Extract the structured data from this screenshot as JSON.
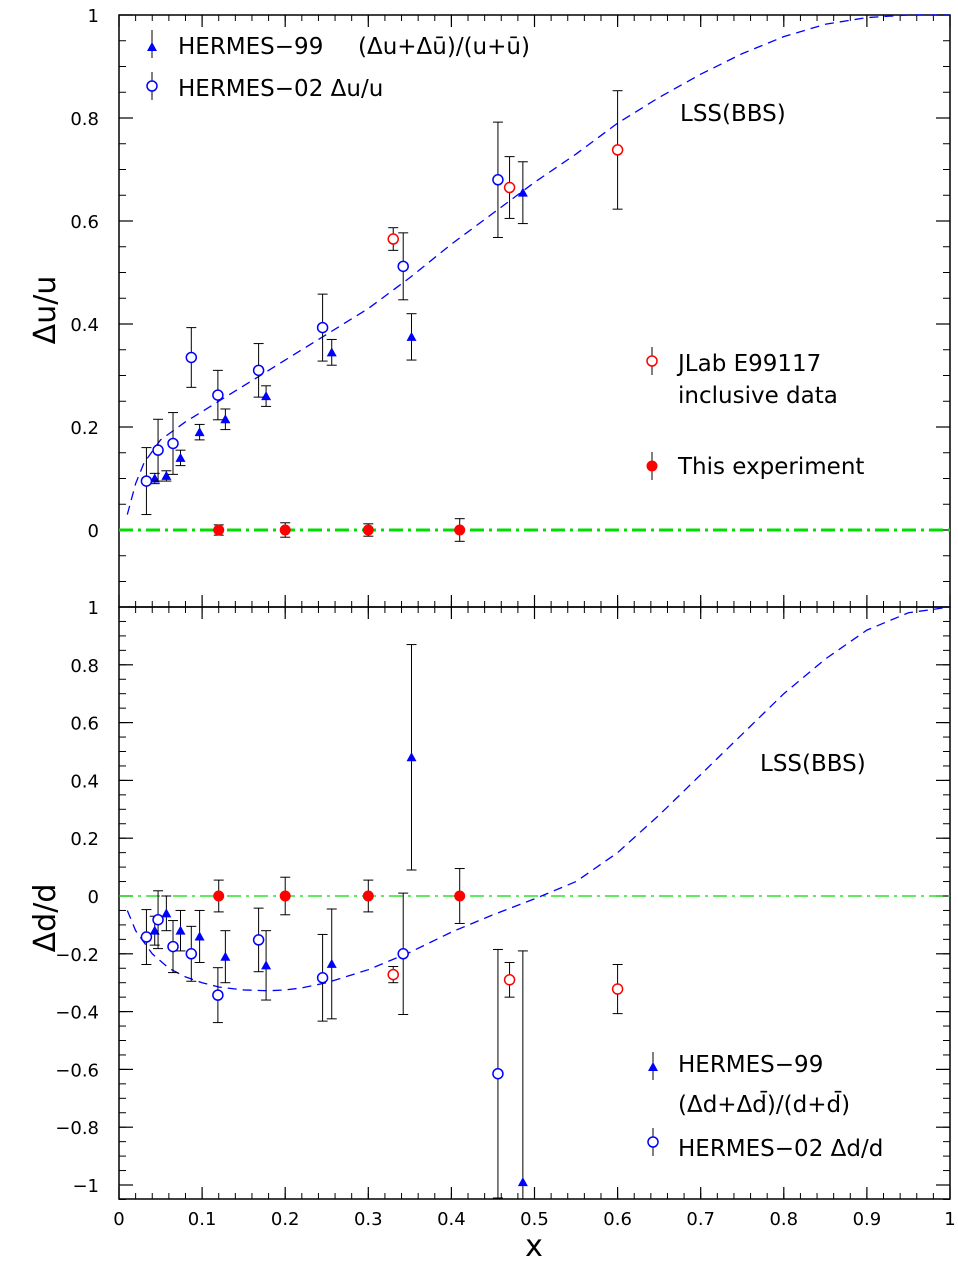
{
  "chart_data": [
    {
      "type": "scatter",
      "panel": "top",
      "title": "",
      "xlabel": "x",
      "ylabel": "Δu/u",
      "xlim": [
        0,
        1
      ],
      "ylim": [
        -0.15,
        1.0
      ],
      "xticks": [
        0,
        0.1,
        0.2,
        0.3,
        0.4,
        0.5,
        0.6,
        0.7,
        0.8,
        0.9,
        1
      ],
      "xtick_labels": [
        "0",
        "0.1",
        "0.2",
        "0.3",
        "0.4",
        "0.5",
        "0.6",
        "0.7",
        "0.8",
        "0.9",
        "1"
      ],
      "yticks": [
        0,
        0.2,
        0.4,
        0.6,
        0.8,
        1
      ],
      "ytick_labels": [
        "0",
        "0.2",
        "0.4",
        "0.6",
        "0.8",
        "1"
      ],
      "grid": false,
      "curve_label": "LSS(BBS)",
      "curve": {
        "x": [
          0.01,
          0.02,
          0.03,
          0.05,
          0.08,
          0.1,
          0.15,
          0.2,
          0.25,
          0.3,
          0.35,
          0.4,
          0.45,
          0.5,
          0.55,
          0.6,
          0.65,
          0.7,
          0.75,
          0.8,
          0.85,
          0.9,
          0.95,
          1.0
        ],
        "y": [
          0.03,
          0.09,
          0.13,
          0.175,
          0.21,
          0.23,
          0.28,
          0.33,
          0.38,
          0.43,
          0.49,
          0.555,
          0.615,
          0.675,
          0.73,
          0.79,
          0.84,
          0.885,
          0.925,
          0.958,
          0.982,
          0.995,
          1.0,
          1.0
        ]
      },
      "zero_line": 0,
      "series": [
        {
          "name": "HERMES-99",
          "marker": "triangle",
          "color": "#0000ff",
          "x": [
            0.043,
            0.057,
            0.074,
            0.097,
            0.128,
            0.177,
            0.256,
            0.352,
            0.486
          ],
          "y": [
            0.1,
            0.105,
            0.14,
            0.19,
            0.215,
            0.26,
            0.345,
            0.375,
            0.655
          ],
          "err": [
            0.01,
            0.01,
            0.015,
            0.015,
            0.02,
            0.02,
            0.025,
            0.045,
            0.06
          ]
        },
        {
          "name": "HERMES-02",
          "marker": "open-circle",
          "color": "#0000ff",
          "x": [
            0.033,
            0.047,
            0.065,
            0.087,
            0.119,
            0.168,
            0.245,
            0.342,
            0.456
          ],
          "y": [
            0.095,
            0.155,
            0.168,
            0.335,
            0.262,
            0.31,
            0.393,
            0.512,
            0.68
          ],
          "err": [
            0.065,
            0.06,
            0.06,
            0.058,
            0.048,
            0.052,
            0.065,
            0.065,
            0.112
          ]
        },
        {
          "name": "JLab E99117",
          "marker": "open-circle",
          "color": "#ff0000",
          "x": [
            0.33,
            0.47,
            0.6
          ],
          "y": [
            0.565,
            0.665,
            0.738
          ],
          "err": [
            0.022,
            0.06,
            0.115
          ]
        },
        {
          "name": "This experiment",
          "marker": "filled-circle",
          "color": "#ff0000",
          "x": [
            0.12,
            0.2,
            0.3,
            0.41
          ],
          "y": [
            0.0,
            0.0,
            0.0,
            0.0
          ],
          "err": [
            0.01,
            0.014,
            0.012,
            0.022
          ]
        }
      ],
      "legend": {
        "hermes99_name": "HERMES−99",
        "hermes99_formula": "(Δu+Δū)/(u+ū)",
        "hermes02": "HERMES−02 Δu/u",
        "jlab_line1": "JLab E99117",
        "jlab_line2": "inclusive data",
        "this_experiment": "This experiment"
      }
    },
    {
      "type": "scatter",
      "panel": "bottom",
      "title": "",
      "xlabel": "x",
      "ylabel": "Δd/d",
      "xlim": [
        0,
        1
      ],
      "ylim": [
        -1.05,
        1.0
      ],
      "xticks": [
        0,
        0.1,
        0.2,
        0.3,
        0.4,
        0.5,
        0.6,
        0.7,
        0.8,
        0.9,
        1
      ],
      "xtick_labels": [
        "0",
        "0.1",
        "0.2",
        "0.3",
        "0.4",
        "0.5",
        "0.6",
        "0.7",
        "0.8",
        "0.9",
        "1"
      ],
      "yticks": [
        -1,
        -0.8,
        -0.6,
        -0.4,
        -0.2,
        0,
        0.2,
        0.4,
        0.6,
        0.8
      ],
      "ytick_labels": [
        "−1",
        "−0.8",
        "−0.6",
        "−0.4",
        "−0.2",
        "0",
        "0.2",
        "0.4",
        "0.6",
        "0.8"
      ],
      "grid": false,
      "curve_label": "LSS(BBS)",
      "curve": {
        "x": [
          0.01,
          0.02,
          0.04,
          0.06,
          0.08,
          0.1,
          0.12,
          0.15,
          0.18,
          0.2,
          0.22,
          0.25,
          0.3,
          0.35,
          0.4,
          0.45,
          0.5,
          0.55,
          0.6,
          0.65,
          0.7,
          0.75,
          0.8,
          0.85,
          0.9,
          0.95,
          1.0
        ],
        "y": [
          -0.05,
          -0.12,
          -0.2,
          -0.25,
          -0.28,
          -0.3,
          -0.315,
          -0.325,
          -0.328,
          -0.325,
          -0.318,
          -0.3,
          -0.255,
          -0.195,
          -0.125,
          -0.065,
          -0.01,
          0.05,
          0.15,
          0.28,
          0.42,
          0.56,
          0.7,
          0.82,
          0.92,
          0.98,
          1.0
        ]
      },
      "zero_line": 0,
      "series": [
        {
          "name": "HERMES-99",
          "marker": "triangle",
          "color": "#0000ff",
          "x": [
            0.043,
            0.057,
            0.074,
            0.097,
            0.128,
            0.177,
            0.256,
            0.352,
            0.486
          ],
          "y": [
            -0.12,
            -0.06,
            -0.12,
            -0.14,
            -0.21,
            -0.24,
            -0.235,
            0.48,
            -0.99
          ],
          "err": [
            0.05,
            0.06,
            0.07,
            0.09,
            0.09,
            0.12,
            0.19,
            0.39,
            0.8
          ]
        },
        {
          "name": "HERMES-02",
          "marker": "open-circle",
          "color": "#0000ff",
          "x": [
            0.033,
            0.047,
            0.065,
            0.087,
            0.119,
            0.168,
            0.245,
            0.342,
            0.456
          ],
          "y": [
            -0.142,
            -0.082,
            -0.175,
            -0.2,
            -0.343,
            -0.152,
            -0.283,
            -0.2,
            -0.615
          ],
          "err": [
            0.095,
            0.1,
            0.09,
            0.095,
            0.095,
            0.11,
            0.15,
            0.21,
            0.43
          ]
        },
        {
          "name": "JLab E99117",
          "marker": "open-circle",
          "color": "#ff0000",
          "x": [
            0.33,
            0.47,
            0.6
          ],
          "y": [
            -0.272,
            -0.29,
            -0.322
          ],
          "err": [
            0.028,
            0.06,
            0.085
          ]
        },
        {
          "name": "This experiment",
          "marker": "filled-circle",
          "color": "#ff0000",
          "x": [
            0.12,
            0.2,
            0.3,
            0.41
          ],
          "y": [
            0.0,
            0.0,
            0.0,
            0.0
          ],
          "err": [
            0.055,
            0.065,
            0.055,
            0.095
          ]
        }
      ],
      "legend": {
        "hermes99_name": "HERMES−99",
        "hermes99_formula": "(Δd+Δd̄)/(d+d̄)",
        "hermes02": "HERMES−02 Δd/d"
      }
    }
  ],
  "colors": {
    "hermes": "#0000ff",
    "jlab": "#ff0000",
    "zero_line": "#00dd00",
    "curve": "#0000ff"
  }
}
